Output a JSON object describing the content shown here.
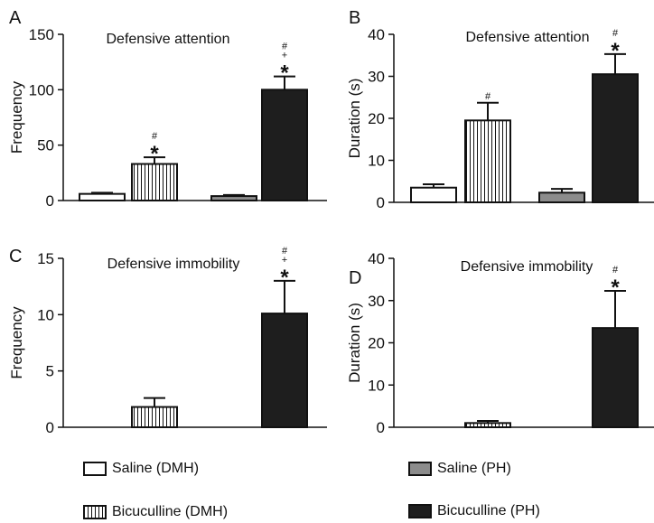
{
  "colors": {
    "saline_dmh": "#ffffff",
    "bicuculline_dmh": "hatch",
    "saline_ph": "#8c8c8c",
    "bicuculline_ph": "#1e1e1e",
    "ink": "#111111"
  },
  "legend": [
    {
      "label": "Saline (DMH)",
      "fill": "white"
    },
    {
      "label": "Bicuculline (DMH)",
      "fill": "hatch"
    },
    {
      "label": "Saline (PH)",
      "fill": "gray"
    },
    {
      "label": "Bicuculline (PH)",
      "fill": "black"
    }
  ],
  "chart_data": [
    {
      "panel": "A",
      "type": "bar",
      "title": "Defensive attention",
      "ylabel": "Frequency",
      "ylim": [
        0,
        150
      ],
      "yticks": [
        0,
        50,
        100,
        150
      ],
      "categories": [
        "Saline (DMH)",
        "Bicuculline (DMH)",
        "Saline (PH)",
        "Bicuculline (PH)"
      ],
      "values": [
        6,
        33,
        4,
        100
      ],
      "errors": [
        1,
        6,
        1,
        12
      ],
      "annotations": [
        [],
        [
          "#",
          "*"
        ],
        [],
        [
          "#",
          "+",
          "*"
        ]
      ]
    },
    {
      "panel": "B",
      "type": "bar",
      "title": "Defensive attention",
      "ylabel": "Duration (s)",
      "ylim": [
        0,
        40
      ],
      "yticks": [
        0,
        10,
        20,
        30,
        40
      ],
      "categories": [
        "Saline (DMH)",
        "Bicuculline (DMH)",
        "Saline (PH)",
        "Bicuculline (PH)"
      ],
      "values": [
        3.5,
        19.5,
        2.3,
        30.5
      ],
      "errors": [
        0.8,
        4.2,
        0.9,
        4.8
      ],
      "annotations": [
        [],
        [
          "#"
        ],
        [],
        [
          "#",
          "*"
        ]
      ]
    },
    {
      "panel": "C",
      "type": "bar",
      "title": "Defensive immobility",
      "ylabel": "Frequency",
      "ylim": [
        0,
        15
      ],
      "yticks": [
        0,
        5,
        10,
        15
      ],
      "categories": [
        "Saline (DMH)",
        "Bicuculline (DMH)",
        "Saline (PH)",
        "Bicuculline (PH)"
      ],
      "values": [
        0,
        1.8,
        0,
        10.1
      ],
      "errors": [
        0,
        0.8,
        0,
        2.9
      ],
      "annotations": [
        [],
        [],
        [],
        [
          "#",
          "+",
          "*"
        ]
      ]
    },
    {
      "panel": "D",
      "type": "bar",
      "title": "Defensive immobility",
      "ylabel": "Duration (s)",
      "ylim": [
        0,
        40
      ],
      "yticks": [
        0,
        10,
        20,
        30,
        40
      ],
      "categories": [
        "Saline (DMH)",
        "Bicuculline (DMH)",
        "Saline (PH)",
        "Bicuculline (PH)"
      ],
      "values": [
        0,
        1.0,
        0,
        23.5
      ],
      "errors": [
        0,
        0.5,
        0,
        8.8
      ],
      "annotations": [
        [],
        [],
        [],
        [
          "#",
          "*"
        ]
      ]
    }
  ]
}
